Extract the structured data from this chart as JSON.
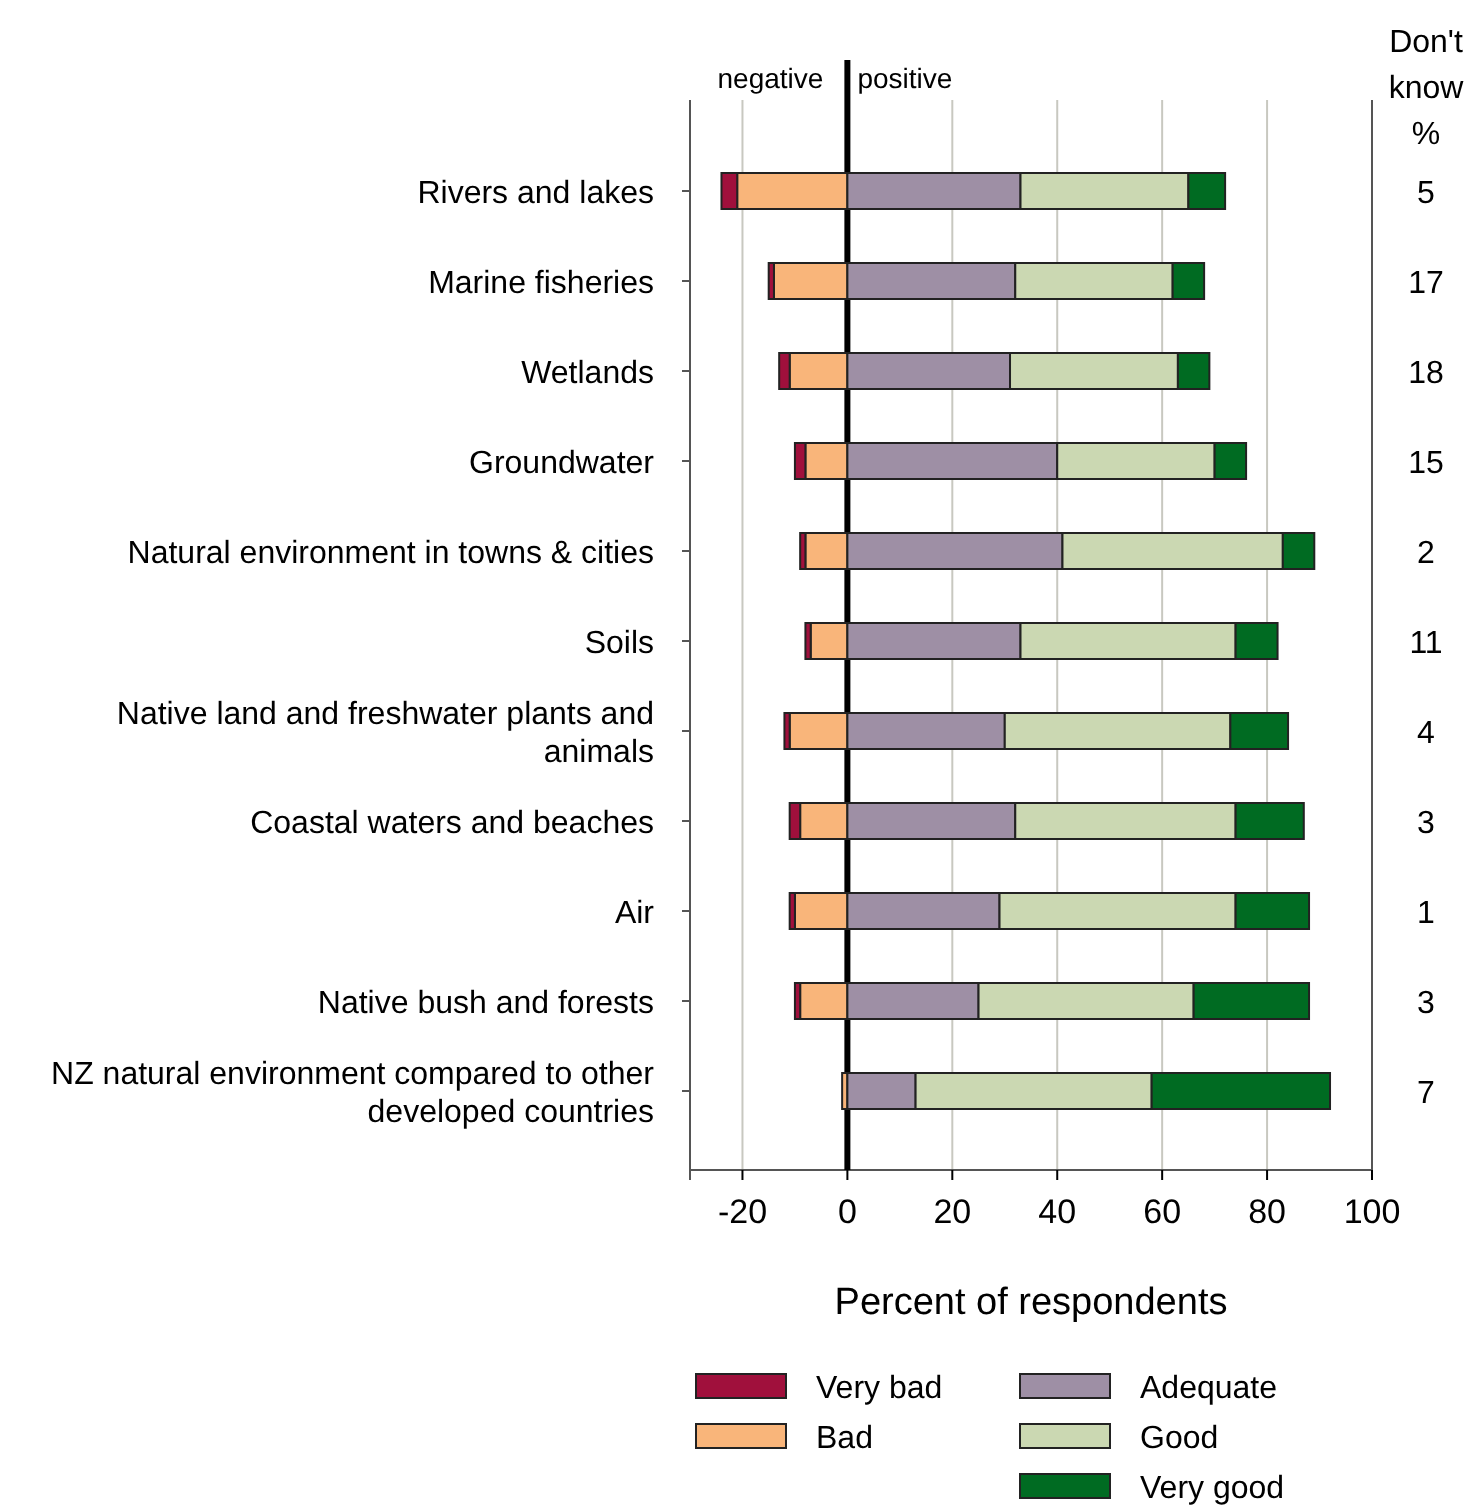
{
  "chart_data": {
    "type": "bar",
    "orientation": "horizontal",
    "stacked": true,
    "xlabel": "Percent of respondents",
    "categories": [
      "Rivers and lakes",
      "Marine fisheries",
      "Wetlands",
      "Groundwater",
      "Natural environment in towns & cities",
      "Soils",
      "Native land and freshwater plants and animals",
      "Coastal waters and beaches",
      "Air",
      "Native bush and forests",
      "NZ natural environment compared to other developed countries"
    ],
    "series": [
      {
        "name": "Bad",
        "color": "#f9b57a",
        "values": [
          -21,
          -14,
          -11,
          -8,
          -8,
          -7,
          -11,
          -9,
          -10,
          -9,
          -1
        ]
      },
      {
        "name": "Very bad",
        "color": "#a0103c",
        "values": [
          -3,
          -1,
          -2,
          -2,
          -1,
          -1,
          -1,
          -2,
          -1,
          -1,
          0
        ]
      },
      {
        "name": "Adequate",
        "color": "#9e8fa5",
        "values": [
          33,
          32,
          31,
          40,
          41,
          33,
          30,
          32,
          29,
          25,
          13
        ]
      },
      {
        "name": "Good",
        "color": "#cbd8b2",
        "values": [
          32,
          30,
          32,
          30,
          42,
          41,
          43,
          42,
          45,
          41,
          45
        ]
      },
      {
        "name": "Very good",
        "color": "#006b22",
        "values": [
          7,
          6,
          6,
          6,
          6,
          8,
          11,
          13,
          14,
          22,
          34
        ]
      }
    ],
    "xlim": [
      -30,
      100
    ],
    "xticks": [
      -20,
      0,
      20,
      40,
      60,
      80,
      100
    ],
    "grid": "x",
    "legend": "bottom",
    "ref_lines": [
      {
        "axis": "x",
        "value": 0,
        "color": "#000000"
      }
    ],
    "annotations": [
      "negative",
      "positive",
      "Don't know %",
      "5",
      "17",
      "18",
      "15",
      "2",
      "11",
      "4",
      "3",
      "1",
      "3",
      "7"
    ]
  }
}
